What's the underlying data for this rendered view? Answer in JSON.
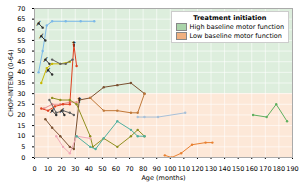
{
  "chart_data": {
    "type": "line",
    "xlabel": "Age (months)",
    "ylabel": "CHOP-INTEND (0-64)",
    "xlim": [
      0,
      190
    ],
    "ylim": [
      0,
      70
    ],
    "xticks": [
      0,
      10,
      20,
      30,
      40,
      50,
      60,
      70,
      80,
      90,
      100,
      110,
      120,
      130,
      140,
      150,
      160,
      170,
      180,
      190
    ],
    "yticks": [
      0,
      5,
      10,
      15,
      20,
      25,
      30,
      35,
      40,
      45,
      50,
      55,
      60,
      65,
      70
    ],
    "grid": true,
    "marker": "circle",
    "legend": "upper right",
    "legend_title": "Treatment initiation",
    "legend_entries": [
      {
        "label": "High baseline motor function",
        "color": "#aad4aa"
      },
      {
        "label": "Low baseline motor function",
        "color": "#f0b080"
      }
    ],
    "bands": [
      {
        "from": 30,
        "to": 70,
        "color": "#ddeedd"
      },
      {
        "from": 0,
        "to": 30,
        "color": "#fde8d8"
      }
    ],
    "series": [
      {
        "color": "#7ab8e8",
        "x": [
          3,
          6,
          9,
          13,
          23,
          34,
          44
        ],
        "values": [
          40,
          50,
          62,
          64,
          64,
          64,
          64
        ]
      },
      {
        "color": "#303030",
        "x": [
          3,
          6
        ],
        "values": [
          63,
          61
        ]
      },
      {
        "color": "#303030",
        "x": [
          5,
          8
        ],
        "values": [
          57,
          55
        ]
      },
      {
        "color": "#303030",
        "x": [
          8,
          11
        ],
        "values": [
          46,
          44
        ]
      },
      {
        "color": "#303030",
        "x": [
          10,
          13
        ],
        "values": [
          41,
          39
        ]
      },
      {
        "color": "#303030",
        "x": [
          13,
          16
        ],
        "values": [
          22,
          20
        ]
      },
      {
        "color": "#303030",
        "x": [
          20,
          22
        ],
        "values": [
          22,
          20
        ]
      },
      {
        "color": "#c8b800",
        "x": [
          5,
          9,
          13,
          19,
          26
        ],
        "values": [
          35,
          42,
          44,
          44,
          45
        ]
      },
      {
        "color": "#e89090",
        "x": [
          7,
          13,
          19,
          26,
          31
        ],
        "values": [
          23,
          25,
          25,
          26,
          26
        ]
      },
      {
        "color": "#e04020",
        "x": [
          5,
          10,
          15,
          21,
          26,
          29,
          31
        ],
        "values": [
          23,
          22,
          24,
          25,
          25,
          53,
          43
        ]
      },
      {
        "color": "#7a5030",
        "x": [
          8,
          13,
          19,
          26,
          29,
          33,
          41,
          51,
          61,
          71,
          81
        ],
        "values": [
          18,
          14,
          10,
          5,
          4,
          27,
          28,
          33,
          34,
          35,
          30
        ]
      },
      {
        "color": "#606060",
        "x": [
          11,
          16,
          21,
          26,
          29
        ],
        "values": [
          27,
          21,
          22,
          21,
          20
        ]
      },
      {
        "color": "#606060",
        "x": [
          13,
          19,
          23,
          28
        ],
        "values": [
          46,
          44,
          44,
          46
        ]
      },
      {
        "color": "#909020",
        "x": [
          13,
          19,
          26,
          31,
          41,
          43,
          51,
          61,
          71,
          76,
          81
        ],
        "values": [
          28,
          27,
          27,
          25,
          10,
          5,
          9,
          5,
          10,
          13,
          10
        ]
      },
      {
        "color": "#f0a8b8",
        "x": [
          16,
          21,
          26,
          31,
          41
        ],
        "values": [
          10,
          5,
          2,
          10,
          9
        ]
      },
      {
        "color": "#50b0a0",
        "x": [
          31,
          41,
          45,
          51,
          61,
          71,
          76,
          81
        ],
        "values": [
          10,
          5,
          4,
          9,
          17,
          13,
          10,
          10
        ]
      },
      {
        "color": "#c07838",
        "x": [
          41,
          51,
          61,
          71,
          76,
          81
        ],
        "values": [
          28,
          22,
          22,
          21,
          21,
          30
        ]
      },
      {
        "color": "#a8c0d8",
        "x": [
          76,
          81,
          91,
          111
        ],
        "values": [
          19,
          19,
          19,
          21
        ]
      },
      {
        "color": "#e88030",
        "x": [
          96,
          101,
          108,
          116,
          126,
          131
        ],
        "values": [
          1,
          0,
          2,
          6,
          7,
          7
        ]
      },
      {
        "color": "#60b060",
        "x": [
          161,
          171,
          178,
          186
        ],
        "values": [
          20,
          19,
          25,
          17
        ]
      }
    ],
    "annotations": [
      {
        "text": "↑",
        "x": 29,
        "y": 53
      },
      {
        "text": "↑",
        "x": 33,
        "y": 27
      },
      {
        "text": "/",
        "x": 3,
        "y": 63
      },
      {
        "text": "/",
        "x": 5,
        "y": 57
      },
      {
        "text": "/",
        "x": 8,
        "y": 46
      },
      {
        "text": "/",
        "x": 10,
        "y": 41
      },
      {
        "text": "/",
        "x": 13,
        "y": 22
      },
      {
        "text": "/",
        "x": 20,
        "y": 22
      }
    ]
  }
}
